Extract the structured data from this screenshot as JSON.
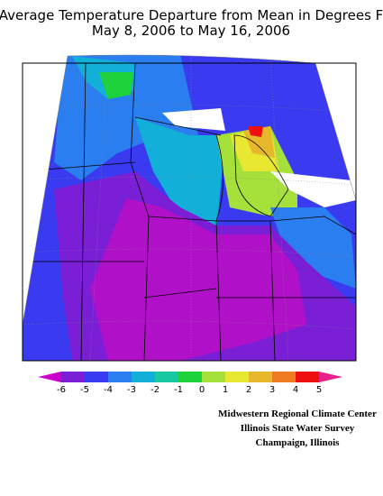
{
  "title": [
    "Average Temperature Departure from Mean in Degrees F",
    "May 8, 2006 to May 16, 2006"
  ],
  "legend": {
    "ticks": [
      -6,
      -5,
      -4,
      -3,
      -2,
      -1,
      0,
      1,
      2,
      3,
      4,
      5
    ],
    "colors": [
      "#cc00cc",
      "#7a1fd6",
      "#3a3af0",
      "#2a7ef0",
      "#12b0d8",
      "#18c8a0",
      "#1ed23c",
      "#a6e03a",
      "#e8e830",
      "#e8b82c",
      "#ee7a22",
      "#ee1010",
      "#e8208c"
    ]
  },
  "credits": [
    "Midwestern Regional Climate Center",
    "Illinois State Water Survey",
    "Champaign, Illinois"
  ]
}
